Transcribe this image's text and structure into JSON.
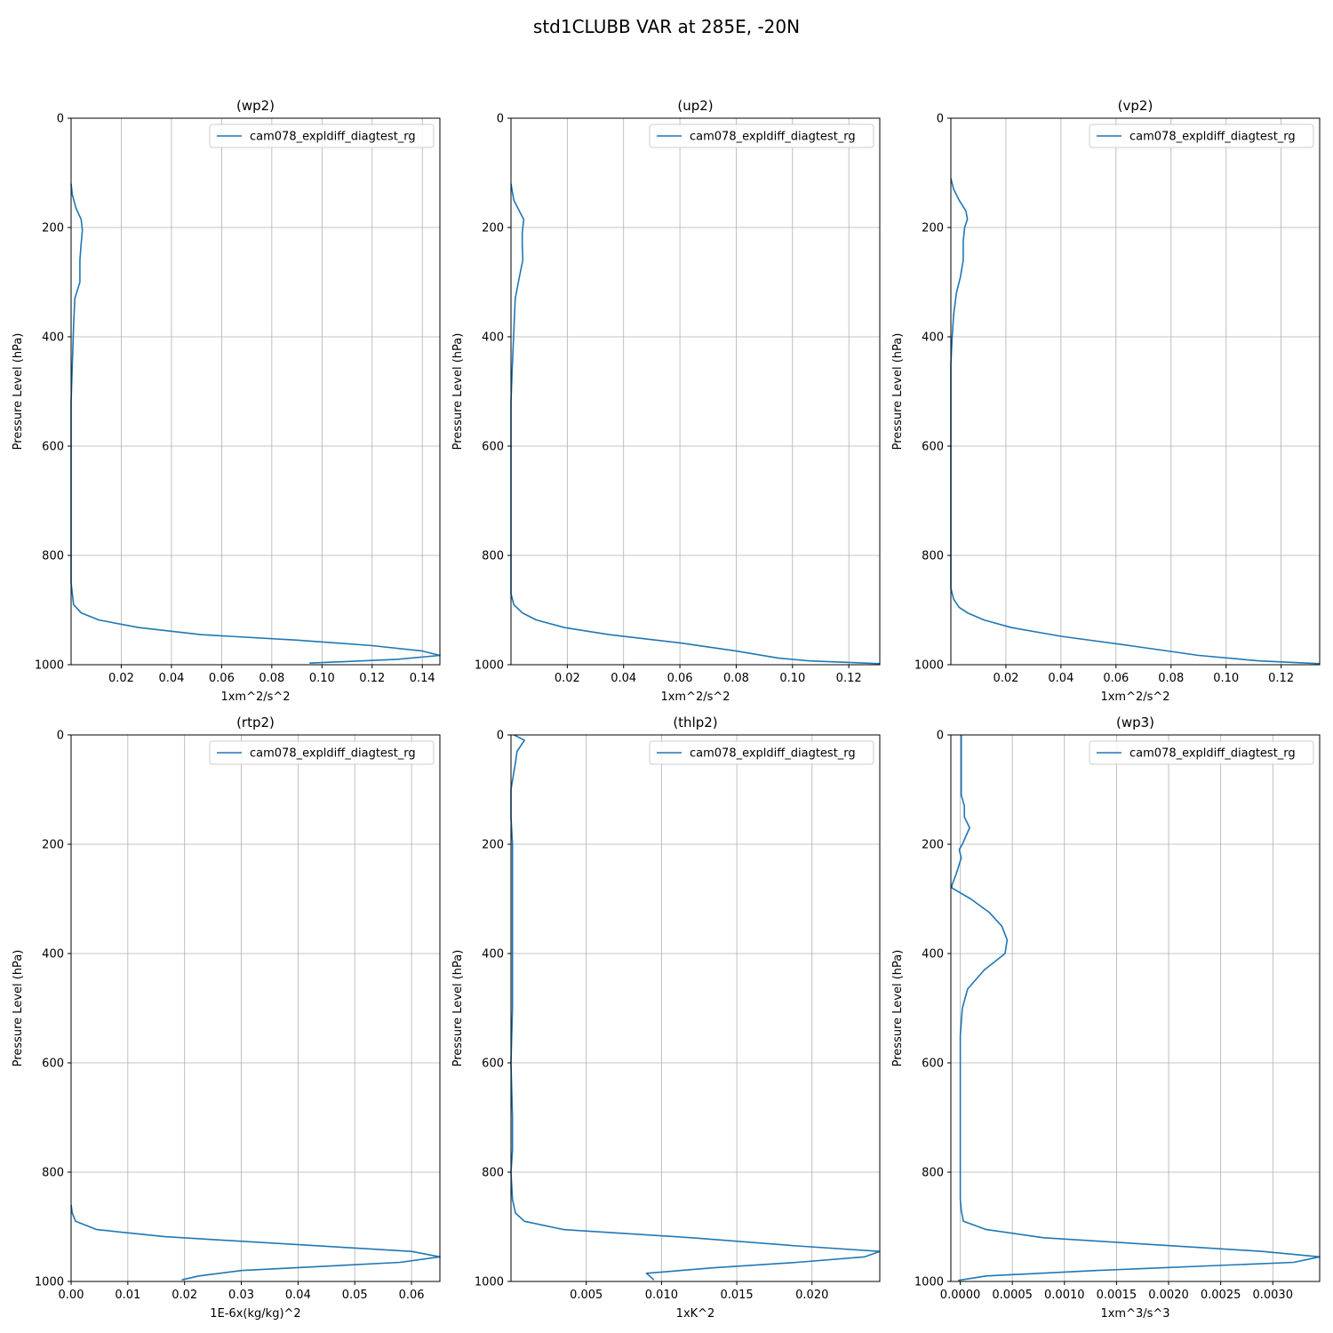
{
  "figure": {
    "title": "std1CLUBB VAR at 285E, -20N"
  },
  "colors": {
    "series": "#1f77b4",
    "grid": "#b0b0b0",
    "axes": "#000000",
    "legend_border": "#cccccc"
  },
  "chart_data": [
    {
      "type": "line",
      "title": "(wp2)",
      "xlabel": "1xm^2/s^2",
      "ylabel": "Pressure Level (hPa)",
      "xlim": [
        0.0,
        0.147
      ],
      "ylim": [
        1000,
        0
      ],
      "xticks": [
        0.02,
        0.04,
        0.06,
        0.08,
        0.1,
        0.12,
        0.14
      ],
      "xtick_labels": [
        "0.02",
        "0.04",
        "0.06",
        "0.08",
        "0.10",
        "0.12",
        "0.14"
      ],
      "yticks": [
        0,
        200,
        400,
        600,
        800,
        1000
      ],
      "ytick_labels": [
        "0",
        "200",
        "400",
        "600",
        "800",
        "1000"
      ],
      "grid": true,
      "legend_position": "top-right",
      "series": [
        {
          "name": "cam078_expldiff_diagtest_rg",
          "x": [
            0.0,
            0.0005,
            0.002,
            0.004,
            0.0045,
            0.004,
            0.0035,
            0.0035,
            0.0015,
            0.001,
            0.0005,
            0.0,
            0.0,
            0.0,
            0.0,
            0.0,
            0.001,
            0.004,
            0.011,
            0.027,
            0.052,
            0.09,
            0.12,
            0.14,
            0.147,
            0.13,
            0.095
          ],
          "y": [
            120,
            140,
            165,
            185,
            205,
            230,
            260,
            300,
            330,
            380,
            450,
            520,
            600,
            700,
            800,
            850,
            890,
            905,
            918,
            932,
            945,
            955,
            965,
            975,
            983,
            990,
            997
          ]
        }
      ]
    },
    {
      "type": "line",
      "title": "(up2)",
      "xlabel": "1xm^2/s^2",
      "ylabel": "Pressure Level (hPa)",
      "xlim": [
        0.0,
        0.131
      ],
      "ylim": [
        1000,
        0
      ],
      "xticks": [
        0.02,
        0.04,
        0.06,
        0.08,
        0.1,
        0.12
      ],
      "xtick_labels": [
        "0.02",
        "0.04",
        "0.06",
        "0.08",
        "0.10",
        "0.12"
      ],
      "yticks": [
        0,
        200,
        400,
        600,
        800,
        1000
      ],
      "ytick_labels": [
        "0",
        "200",
        "400",
        "600",
        "800",
        "1000"
      ],
      "grid": true,
      "legend_position": "top-right",
      "series": [
        {
          "name": "cam078_expldiff_diagtest_rg",
          "x": [
            0.0,
            0.001,
            0.003,
            0.0045,
            0.004,
            0.004,
            0.0042,
            0.003,
            0.0015,
            0.001,
            0.0005,
            0.0,
            0.0,
            0.0,
            0.0,
            0.0,
            0.001,
            0.004,
            0.009,
            0.019,
            0.035,
            0.06,
            0.08,
            0.095,
            0.106,
            0.131
          ],
          "y": [
            120,
            150,
            170,
            185,
            210,
            230,
            260,
            290,
            330,
            390,
            450,
            520,
            600,
            700,
            800,
            870,
            890,
            905,
            918,
            932,
            945,
            960,
            975,
            988,
            993,
            998
          ]
        }
      ]
    },
    {
      "type": "line",
      "title": "(vp2)",
      "xlabel": "1xm^2/s^2",
      "ylabel": "Pressure Level (hPa)",
      "xlim": [
        0.0,
        0.134
      ],
      "ylim": [
        1000,
        0
      ],
      "xticks": [
        0.02,
        0.04,
        0.06,
        0.08,
        0.1,
        0.12
      ],
      "xtick_labels": [
        "0.02",
        "0.04",
        "0.06",
        "0.08",
        "0.10",
        "0.12"
      ],
      "yticks": [
        0,
        200,
        400,
        600,
        800,
        1000
      ],
      "ytick_labels": [
        "0",
        "200",
        "400",
        "600",
        "800",
        "1000"
      ],
      "grid": true,
      "legend_position": "top-right",
      "series": [
        {
          "name": "cam078_expldiff_diagtest_rg",
          "x": [
            0.0,
            0.001,
            0.003,
            0.0055,
            0.006,
            0.005,
            0.0045,
            0.0045,
            0.0035,
            0.002,
            0.001,
            0.0005,
            0.0,
            0.0,
            0.0,
            0.0,
            0.0,
            0.001,
            0.003,
            0.006,
            0.012,
            0.022,
            0.04,
            0.065,
            0.09,
            0.112,
            0.134
          ],
          "y": [
            110,
            130,
            150,
            170,
            185,
            200,
            225,
            260,
            290,
            320,
            360,
            400,
            450,
            600,
            700,
            800,
            860,
            880,
            895,
            905,
            918,
            932,
            948,
            965,
            983,
            993,
            998
          ]
        }
      ]
    },
    {
      "type": "line",
      "title": "(rtp2)",
      "xlabel": "1E-6x(kg/kg)^2",
      "ylabel": "Pressure Level (hPa)",
      "xlim": [
        0.0,
        0.065
      ],
      "ylim": [
        1000,
        0
      ],
      "xticks": [
        0.0,
        0.01,
        0.02,
        0.03,
        0.04,
        0.05,
        0.06
      ],
      "xtick_labels": [
        "0.00",
        "0.01",
        "0.02",
        "0.03",
        "0.04",
        "0.05",
        "0.06"
      ],
      "yticks": [
        0,
        200,
        400,
        600,
        800,
        1000
      ],
      "ytick_labels": [
        "0",
        "200",
        "400",
        "600",
        "800",
        "1000"
      ],
      "grid": true,
      "legend_position": "top-right",
      "series": [
        {
          "name": "cam078_expldiff_diagtest_rg",
          "x": [
            0.0,
            0.0002,
            0.0008,
            0.0045,
            0.0165,
            0.06,
            0.065,
            0.058,
            0.03,
            0.0225,
            0.0195
          ],
          "y": [
            860,
            875,
            890,
            905,
            918,
            945,
            955,
            965,
            980,
            990,
            997
          ]
        }
      ]
    },
    {
      "type": "line",
      "title": "(thlp2)",
      "xlabel": "1xK^2",
      "ylabel": "Pressure Level (hPa)",
      "xlim": [
        0.0,
        0.0245
      ],
      "ylim": [
        1000,
        0
      ],
      "xticks": [
        0.005,
        0.01,
        0.015,
        0.02
      ],
      "xtick_labels": [
        "0.005",
        "0.010",
        "0.015",
        "0.020"
      ],
      "yticks": [
        0,
        200,
        400,
        600,
        800,
        1000
      ],
      "ytick_labels": [
        "0",
        "200",
        "400",
        "600",
        "800",
        "1000"
      ],
      "grid": true,
      "legend_position": "top-right",
      "series": [
        {
          "name": "cam078_expldiff_diagtest_rg",
          "x": [
            0.0002,
            0.0009,
            0.0004,
            0.0003,
            0.0,
            0.0,
            0.0001,
            0.0001,
            0.0001,
            0.0001,
            0.0,
            0.0001,
            0.0001,
            0.0,
            0.0001,
            0.0003,
            0.0009,
            0.0035,
            0.012,
            0.019,
            0.0245,
            0.0235,
            0.019,
            0.0135,
            0.009,
            0.0095
          ],
          "y": [
            0,
            10,
            30,
            50,
            100,
            150,
            200,
            300,
            400,
            500,
            600,
            700,
            760,
            800,
            850,
            875,
            890,
            905,
            920,
            935,
            945,
            955,
            965,
            975,
            985,
            997
          ]
        }
      ]
    },
    {
      "type": "line",
      "title": "(wp3)",
      "xlabel": "1xm^3/s^3",
      "ylabel": "Pressure Level (hPa)",
      "xlim": [
        -9e-05,
        0.00345
      ],
      "ylim": [
        1000,
        0
      ],
      "xticks": [
        0.0,
        0.0005,
        0.001,
        0.0015,
        0.002,
        0.0025,
        0.003
      ],
      "xtick_labels": [
        "0.0000",
        "0.0005",
        "0.0010",
        "0.0015",
        "0.0020",
        "0.0025",
        "0.0030"
      ],
      "yticks": [
        0,
        200,
        400,
        600,
        800,
        1000
      ],
      "ytick_labels": [
        "0",
        "200",
        "400",
        "600",
        "800",
        "1000"
      ],
      "grid": true,
      "legend_position": "top-right",
      "series": [
        {
          "name": "cam078_expldiff_diagtest_rg",
          "x": [
            1e-05,
            1e-05,
            1e-05,
            1e-05,
            4e-05,
            4e-05,
            9e-05,
            2e-05,
            -1e-05,
            1e-05,
            -4e-05,
            -8e-05,
            -8e-05,
            0.0001,
            0.00028,
            0.0004,
            0.00045,
            0.00043,
            0.00023,
            7e-05,
            2e-05,
            0.0,
            0.0,
            0.0,
            0.0,
            0.0,
            1e-05,
            3e-05,
            0.00025,
            0.0008,
            0.0029,
            0.00345,
            0.0032,
            0.0013,
            0.00025,
            -2e-05
          ],
          "y": [
            0,
            50,
            100,
            110,
            130,
            150,
            170,
            200,
            210,
            225,
            255,
            275,
            280,
            300,
            325,
            350,
            375,
            400,
            430,
            465,
            500,
            550,
            600,
            700,
            800,
            850,
            870,
            890,
            905,
            920,
            945,
            955,
            965,
            980,
            990,
            998
          ]
        }
      ]
    }
  ]
}
